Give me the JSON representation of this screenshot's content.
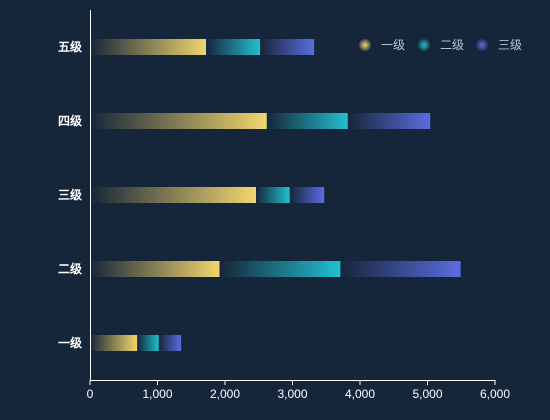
{
  "chart_data": {
    "type": "bar",
    "orientation": "horizontal",
    "stacked": true,
    "categories": [
      "一级",
      "二级",
      "三级",
      "四级",
      "五级"
    ],
    "series": [
      {
        "name": "一级",
        "values": [
          700,
          1920,
          2460,
          2620,
          1720
        ],
        "color_start": "#16263a",
        "color_end": "#f2d66e"
      },
      {
        "name": "二级",
        "values": [
          320,
          1790,
          500,
          1200,
          800
        ],
        "color_start": "#16263a",
        "color_end": "#22c0d0"
      },
      {
        "name": "三级",
        "values": [
          330,
          1780,
          510,
          1220,
          800
        ],
        "color_start": "#16263a",
        "color_end": "#5a6de0"
      }
    ],
    "xlim": [
      0,
      6000
    ],
    "x_ticks": [
      "0",
      "1,000",
      "2,000",
      "3,000",
      "4,000",
      "5,000",
      "6,000"
    ],
    "grid": false,
    "legend_position": "top-right"
  }
}
